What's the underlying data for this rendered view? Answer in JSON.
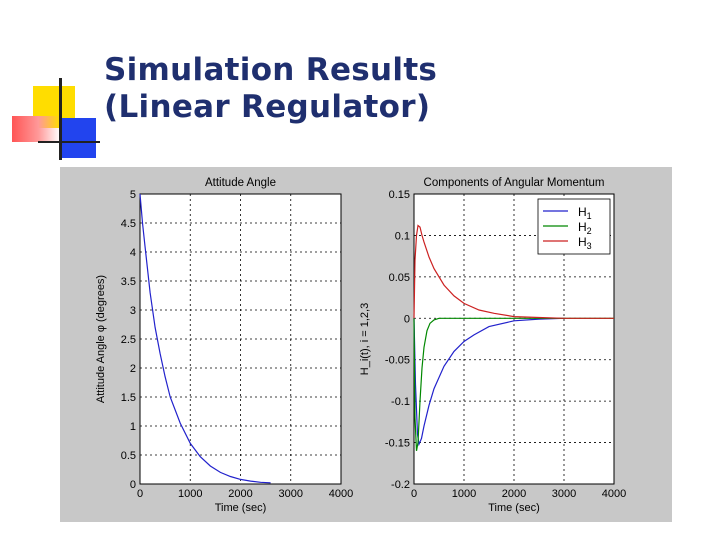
{
  "slide": {
    "title_line1": "Simulation Results",
    "title_line2": "(Linear Regulator)"
  },
  "colors": {
    "title": "#1f2f6f",
    "figure_background": "#c8c8c8",
    "accent_yellow": "#ffdd00",
    "accent_red": "#ff5555",
    "accent_blue": "#2244ee"
  },
  "chart_data": [
    {
      "type": "line",
      "title": "Attitude Angle",
      "xlabel": "Time (sec)",
      "ylabel": "Attitude Angle φ (degrees)",
      "xlim": [
        0,
        4000
      ],
      "ylim": [
        0,
        5
      ],
      "xticks": [
        "0",
        "1000",
        "2000",
        "3000",
        "4000"
      ],
      "yticks": [
        "0",
        "0.5",
        "1",
        "1.5",
        "2",
        "2.5",
        "3",
        "3.5",
        "4",
        "4.5",
        "5"
      ],
      "grid": true,
      "series": [
        {
          "color": "#2222cc",
          "x": [
            0,
            50,
            100,
            200,
            300,
            400,
            500,
            600,
            800,
            1000,
            1200,
            1400,
            1600,
            1800,
            2000,
            2200,
            2400,
            2600
          ],
          "y": [
            5,
            4.5,
            4.1,
            3.3,
            2.7,
            2.25,
            1.85,
            1.5,
            1.05,
            0.7,
            0.47,
            0.31,
            0.2,
            0.13,
            0.08,
            0.05,
            0.03,
            0.02
          ]
        }
      ]
    },
    {
      "type": "line",
      "title": "Components of Angular Momentum",
      "xlabel": "Time (sec)",
      "ylabel": "H_i(t), i = 1,2,3",
      "xlim": [
        0,
        4000
      ],
      "ylim": [
        -0.2,
        0.15
      ],
      "xticks": [
        "0",
        "1000",
        "2000",
        "3000",
        "4000"
      ],
      "yticks": [
        "-0.2",
        "-0.15",
        "-0.1",
        "-0.05",
        "0",
        "0.05",
        "0.1",
        "0.15"
      ],
      "grid": true,
      "legend_position": "top-right",
      "legend": [
        {
          "name": "H",
          "sub": "1",
          "color": "#2222cc"
        },
        {
          "name": "H",
          "sub": "2",
          "color": "#008800"
        },
        {
          "name": "H",
          "sub": "3",
          "color": "#cc2222"
        }
      ],
      "series": [
        {
          "name": "H1",
          "color": "#2222cc",
          "x": [
            0,
            30,
            70,
            100,
            150,
            200,
            300,
            400,
            600,
            800,
            1000,
            1200,
            1500,
            2000,
            2500,
            3000
          ],
          "y": [
            0,
            -0.08,
            -0.14,
            -0.152,
            -0.145,
            -0.13,
            -0.105,
            -0.085,
            -0.058,
            -0.04,
            -0.028,
            -0.02,
            -0.01,
            -0.003,
            -0.001,
            0
          ]
        },
        {
          "name": "H2",
          "color": "#008800",
          "x": [
            0,
            20,
            50,
            80,
            120,
            160,
            200,
            260,
            320,
            400,
            500,
            700,
            1000,
            4000
          ],
          "y": [
            0,
            -0.12,
            -0.16,
            -0.15,
            -0.1,
            -0.06,
            -0.035,
            -0.015,
            -0.006,
            -0.002,
            0,
            0,
            0,
            0
          ]
        },
        {
          "name": "H3",
          "color": "#cc2222",
          "x": [
            0,
            20,
            50,
            80,
            120,
            160,
            200,
            300,
            400,
            600,
            800,
            1000,
            1300,
            1600,
            2000,
            2500,
            3000,
            4000
          ],
          "y": [
            0,
            0.07,
            0.1,
            0.112,
            0.11,
            0.1,
            0.092,
            0.074,
            0.06,
            0.04,
            0.027,
            0.018,
            0.01,
            0.006,
            0.002,
            0.001,
            0,
            0
          ]
        }
      ]
    }
  ]
}
